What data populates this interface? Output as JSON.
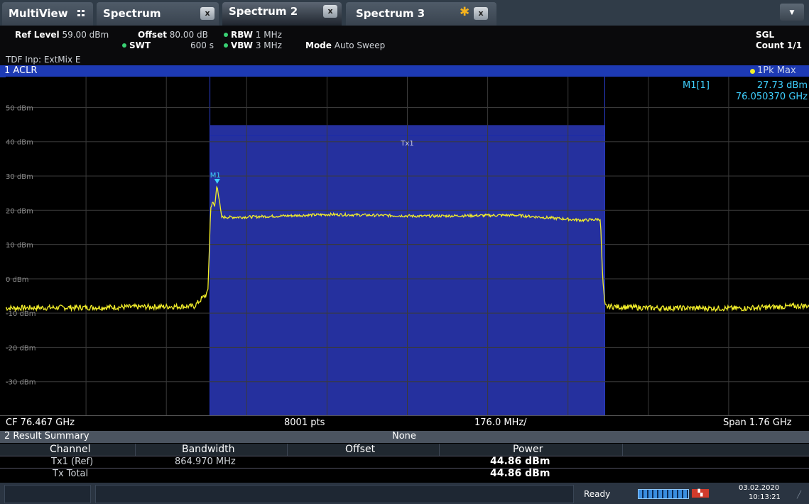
{
  "tabs": {
    "multiview": "MultiView",
    "items": [
      {
        "label": "Spectrum",
        "active": false,
        "close": "x"
      },
      {
        "label": "Spectrum 2",
        "active": true,
        "close": "x"
      },
      {
        "label": "Spectrum 3",
        "active": false,
        "close": "x"
      }
    ]
  },
  "header": {
    "ref_level_label": "Ref Level",
    "ref_level_value": "59.00 dBm",
    "offset_label": "Offset",
    "offset_value": "80.00 dB",
    "rbw_label": "RBW",
    "rbw_value": "1 MHz",
    "swt_label": "SWT",
    "swt_value": "600 s",
    "vbw_label": "VBW",
    "vbw_value": "3 MHz",
    "mode_label": "Mode",
    "mode_value": "Auto Sweep",
    "tdf": "TDF Inp: ExtMix E",
    "sgl": "SGL",
    "count": "Count 1/1"
  },
  "diagram": {
    "title": "1 ACLR",
    "trace_label": "1Pk Max",
    "marker_name": "M1[1]",
    "marker_level": "27.73 dBm",
    "marker_freq": "76.050370 GHz",
    "marker_tag": "M1",
    "channel_label": "Tx1",
    "y_ticks": [
      "50 dBm",
      "40 dBm",
      "30 dBm",
      "20 dBm",
      "10 dBm",
      "0 dBm",
      "-10 dBm",
      "-20 dBm",
      "-30 dBm"
    ],
    "trace_color": "#f2ee2a",
    "channel_color": "#25309e"
  },
  "chart_data": {
    "type": "line",
    "title": "1 ACLR",
    "y_unit": "dBm",
    "ylim": [
      -40,
      59
    ],
    "y_ticks": [
      50,
      40,
      30,
      20,
      10,
      0,
      -10,
      -20,
      -30
    ],
    "x_center_ghz": 76.467,
    "x_span_ghz": 1.76,
    "x_div_mhz": 176.0,
    "points": 8001,
    "series": [
      {
        "name": "1Pk Max",
        "x_ghz": [
          75.587,
          75.8,
          76.0,
          76.03,
          76.036,
          76.04,
          76.045,
          76.05,
          76.06,
          76.1,
          76.3,
          76.5,
          76.7,
          76.85,
          76.89,
          76.895,
          76.9,
          77.0,
          77.2,
          77.347
        ],
        "y_dbm": [
          -8.5,
          -8.3,
          -8.0,
          -4.0,
          20.5,
          22.5,
          21.0,
          27.7,
          18.0,
          18.0,
          18.8,
          18.3,
          18.6,
          17.1,
          17.4,
          0,
          -8.0,
          -8.5,
          -8.6,
          -7.8
        ]
      }
    ],
    "markers": [
      {
        "name": "M1",
        "x_ghz": 76.05037,
        "y_dbm": 27.73
      }
    ],
    "channel": {
      "name": "Tx1",
      "start_ghz": 76.0345,
      "stop_ghz": 76.8995,
      "level_dbm": 44.86
    }
  },
  "below_axis": {
    "cf": "CF 76.467 GHz",
    "pts": "8001 pts",
    "div": "176.0 MHz/",
    "span": "Span 1.76 GHz"
  },
  "result_summary": {
    "title": "2 Result Summary",
    "reference": "None",
    "headers": [
      "Channel",
      "Bandwidth",
      "Offset",
      "Power"
    ],
    "rows": [
      {
        "channel": "Tx1 (Ref)",
        "bandwidth": "864.970 MHz",
        "offset": "",
        "power": "44.86 dBm"
      },
      {
        "channel": "Tx Total",
        "bandwidth": "",
        "offset": "",
        "power": "44.86 dBm"
      }
    ]
  },
  "status": {
    "ready": "Ready",
    "date": "03.02.2020",
    "time": "10:13:21"
  }
}
